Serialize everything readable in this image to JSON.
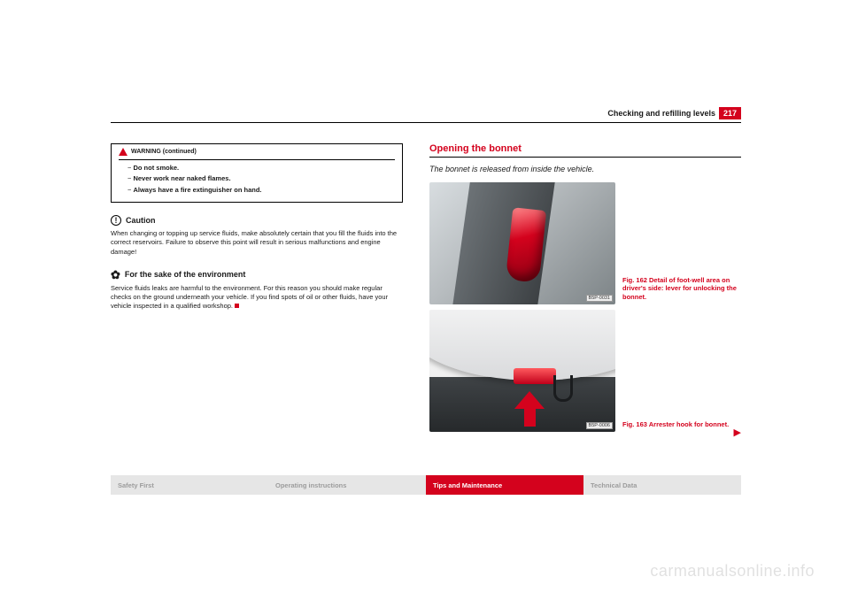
{
  "header": {
    "section": "Checking and refilling levels",
    "page": "217"
  },
  "warning": {
    "head": "WARNING (continued)",
    "items": [
      "Do not smoke.",
      "Never work near naked flames.",
      "Always have a fire extinguisher on hand."
    ]
  },
  "caution": {
    "title": "Caution",
    "body": "When changing or topping up service fluids, make absolutely certain that you fill the fluids into the correct reservoirs. Failure to observe this point will result in serious malfunctions and engine damage!"
  },
  "environment": {
    "title": "For the sake of the environment",
    "body": "Service fluids leaks are harmful to the environment. For this reason you should make regular checks on the ground underneath your vehicle. If you find spots of oil or other fluids, have your vehicle inspected in a qualified workshop."
  },
  "right": {
    "title": "Opening the bonnet",
    "sub": "The bonnet is released from inside the vehicle."
  },
  "fig1": {
    "tag": "B5P-0031",
    "caption": "Fig. 162   Detail of foot-well area on driver's side: lever for unlocking the bonnet."
  },
  "fig2": {
    "tag": "B5P-0006",
    "caption": "Fig. 163   Arrester hook for bonnet."
  },
  "footer": {
    "a": "Safety First",
    "b": "Operating instructions",
    "c": "Tips and Maintenance",
    "d": "Technical Data"
  },
  "watermark": "carmanualsonline.info",
  "colors": {
    "brand": "#d4021d"
  }
}
